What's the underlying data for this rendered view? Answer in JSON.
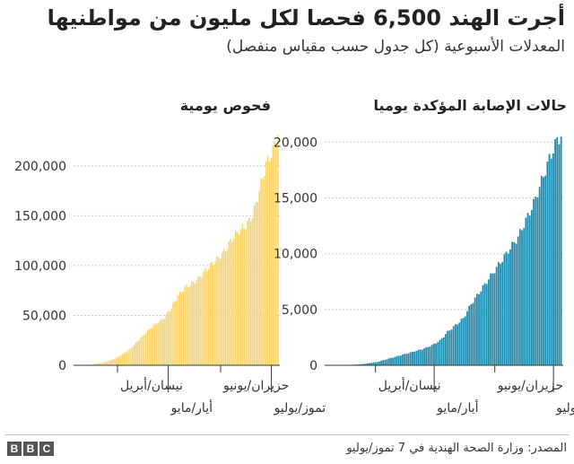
{
  "title": "أجرت الهند 6,500 فحصا لكل مليون من مواطنيها",
  "subtitle": "المعدلات الأسبوعية (كل جدول حسب مقياس منفصل)",
  "source": "المصدر: وزارة الصحة الهندية في 7 تموز/يوليو",
  "logo": [
    "B",
    "B",
    "C"
  ],
  "colors": {
    "tests": "#f7d36a",
    "cases": "#1a89ad",
    "axis": "#333333",
    "grid": "#cccccc"
  },
  "chart_data": [
    {
      "type": "bar",
      "title": "فحوص يومية",
      "y_ticks": [
        0,
        50000,
        100000,
        150000,
        200000
      ],
      "y_tick_labels": [
        "0",
        "50,000",
        "100,000",
        "150,000",
        "200,000"
      ],
      "ylim": [
        0,
        235000
      ],
      "grid": true,
      "date_labels": [
        {
          "text": "نيسان/أبريل",
          "day": 1,
          "row": 1
        },
        {
          "text": "أيار/مايو",
          "day": 31,
          "row": 2
        },
        {
          "text": "حزيران/يونيو",
          "day": 62,
          "row": 1
        },
        {
          "text": "تموز/يوليو",
          "day": 92,
          "row": 2
        }
      ],
      "x_days": [
        -19,
        -15,
        -11,
        -7,
        -3,
        1,
        5,
        9,
        13,
        17,
        21,
        25,
        29,
        33,
        37,
        41,
        45,
        49,
        53,
        57,
        61,
        65,
        69,
        73,
        77,
        81,
        85,
        89,
        93,
        96
      ],
      "values": [
        0,
        500,
        1500,
        3000,
        5000,
        8000,
        12000,
        17000,
        24000,
        31000,
        38000,
        43000,
        48000,
        58000,
        70000,
        78000,
        82000,
        87000,
        95000,
        102000,
        108000,
        116000,
        127000,
        135000,
        140000,
        150000,
        175000,
        202000,
        215000,
        232000
      ]
    },
    {
      "type": "bar",
      "title": "حالات الإصابة المؤكدة يوميا",
      "y_ticks": [
        0,
        5000,
        10000,
        15000,
        20000
      ],
      "y_tick_labels": [
        "0",
        "5,000",
        "10,000",
        "15,000",
        "20,000"
      ],
      "ylim": [
        0,
        21000
      ],
      "grid": true,
      "date_labels": [
        {
          "text": "نيسان/أبريل",
          "day": 1,
          "row": 1
        },
        {
          "text": "أيار/مايو",
          "day": 31,
          "row": 2
        },
        {
          "text": "حزيران/يونيو",
          "day": 62,
          "row": 1
        },
        {
          "text": "تموز/يوليو",
          "day": 92,
          "row": 2
        }
      ],
      "x_days": [
        -22,
        -18,
        -14,
        -10,
        -6,
        -2,
        2,
        6,
        10,
        14,
        18,
        22,
        26,
        30,
        34,
        38,
        42,
        46,
        50,
        54,
        58,
        62,
        66,
        70,
        74,
        78,
        82,
        86,
        90,
        94,
        96
      ],
      "values": [
        0,
        0,
        20,
        50,
        100,
        200,
        300,
        500,
        700,
        900,
        1100,
        1300,
        1500,
        1800,
        2200,
        3000,
        3600,
        4200,
        5500,
        6500,
        7500,
        8500,
        9500,
        10500,
        11500,
        13000,
        14500,
        16500,
        18500,
        20200,
        20600
      ]
    }
  ]
}
